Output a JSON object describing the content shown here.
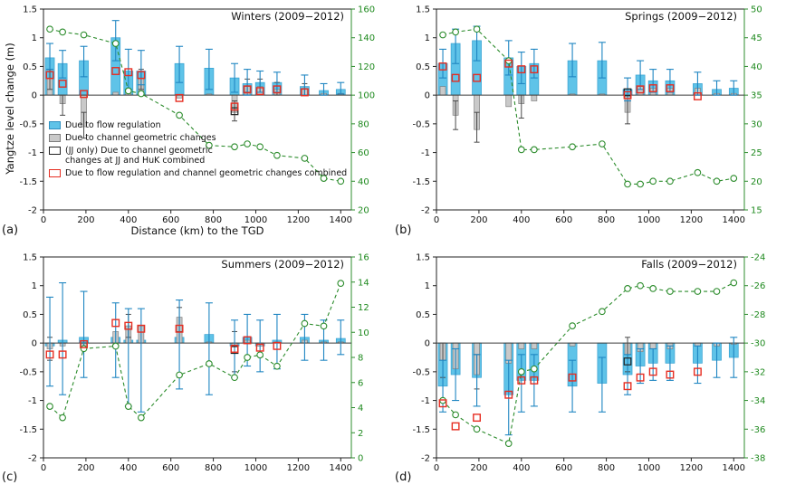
{
  "figure": {
    "ylabel": "Yangtze level change (m)",
    "xlabel": "Distance (km) to the TGD"
  },
  "colors": {
    "flow_bar": "#5fc3e8",
    "flow_bar_edge": "#35a0d0",
    "flow_err": "#1f86c2",
    "channel_bar": "#c9c9c9",
    "channel_bar_edge": "#808080",
    "channel_err": "#4a4a4a",
    "combined_marker": "#e62e22",
    "jj_marker": "#222222",
    "green_line": "#2c8c2c",
    "axis_color": "#222222",
    "zero_line": "#3a3a3a"
  },
  "legend": {
    "items": [
      {
        "swatch": "flow",
        "label_lines": [
          "Due to flow regulation"
        ]
      },
      {
        "swatch": "channel",
        "label_lines": [
          "Due to channel geometric changes"
        ]
      },
      {
        "swatch": "jj",
        "label_lines": [
          "(JJ only) Due to channel geometric",
          "changes at JJ and HuK combined"
        ]
      },
      {
        "swatch": "combined",
        "label_lines": [
          "Due to flow regulation and channel geometric changes combined"
        ]
      }
    ]
  },
  "chart_data": [
    {
      "panel": "a",
      "letter": "(a)",
      "title": "Winters (2009−2012)",
      "type": "bar",
      "xlim": [
        0,
        1450
      ],
      "ylim": [
        -2,
        1.5
      ],
      "xticks": [
        0,
        200,
        400,
        600,
        800,
        1000,
        1200,
        1400
      ],
      "yticks": [
        -2,
        -1.5,
        -1,
        -0.5,
        0,
        0.5,
        1,
        1.5
      ],
      "right_axis": {
        "min": 20,
        "max": 160,
        "step": 20
      },
      "x": [
        30,
        90,
        190,
        340,
        400,
        460,
        640,
        780,
        900,
        960,
        1020,
        1100,
        1230,
        1320,
        1400
      ],
      "series": {
        "flow_regulation": [
          0.65,
          0.55,
          0.6,
          1.0,
          0.42,
          0.42,
          0.55,
          0.47,
          0.3,
          0.2,
          0.22,
          0.22,
          0.15,
          0.08,
          0.1
        ],
        "flow_err": [
          [
            0.45,
            0.9
          ],
          [
            0.3,
            0.78
          ],
          [
            0.32,
            0.85
          ],
          [
            0.6,
            1.3
          ],
          [
            0.1,
            0.8
          ],
          [
            0.18,
            0.78
          ],
          [
            0.22,
            0.85
          ],
          [
            0.1,
            0.8
          ],
          [
            0.05,
            0.55
          ],
          [
            0.0,
            0.45
          ],
          [
            0.05,
            0.42
          ],
          [
            0.05,
            0.4
          ],
          [
            0.0,
            0.35
          ],
          [
            0.0,
            0.2
          ],
          [
            0.02,
            0.22
          ]
        ],
        "channel_geometric": [
          0.3,
          -0.15,
          -0.55,
          0.05,
          0.05,
          0.3,
          -0.05,
          0.02,
          -0.3,
          0.15,
          0.15,
          0.1,
          0.1,
          0.03,
          0.03
        ],
        "channel_err": [
          [
            0.1,
            0.45
          ],
          [
            -0.35,
            0.0
          ],
          [
            -0.75,
            -0.3
          ],
          null,
          null,
          [
            0.1,
            0.45
          ],
          null,
          null,
          [
            -0.45,
            -0.1
          ],
          [
            0.05,
            0.28
          ],
          [
            0.05,
            0.28
          ],
          [
            0.0,
            0.22
          ],
          [
            0.0,
            0.2
          ],
          null,
          null
        ],
        "combined_red_square": [
          0.35,
          0.2,
          0.02,
          0.42,
          0.4,
          0.35,
          -0.05,
          null,
          -0.2,
          0.1,
          0.07,
          0.1,
          0.05,
          null,
          null
        ],
        "jj_black_square": [
          null,
          null,
          null,
          null,
          null,
          null,
          null,
          null,
          -0.28,
          null,
          null,
          null,
          null,
          null,
          null
        ],
        "green_line_right_axis": [
          146,
          144,
          142,
          136,
          103,
          101,
          86,
          65,
          64,
          66,
          64,
          58,
          56,
          42,
          40
        ]
      }
    },
    {
      "panel": "b",
      "letter": "(b)",
      "title": "Springs (2009−2012)",
      "type": "bar",
      "xlim": [
        0,
        1450
      ],
      "ylim": [
        -2,
        1.5
      ],
      "xticks": [
        0,
        200,
        400,
        600,
        800,
        1000,
        1200,
        1400
      ],
      "yticks": [
        -2,
        -1.5,
        -1,
        -0.5,
        0,
        0.5,
        1,
        1.5
      ],
      "right_axis": {
        "min": 15,
        "max": 50,
        "step": 5
      },
      "x": [
        30,
        90,
        190,
        340,
        400,
        460,
        640,
        780,
        900,
        960,
        1020,
        1100,
        1230,
        1320,
        1400
      ],
      "series": {
        "flow_regulation": [
          0.55,
          0.9,
          0.95,
          0.65,
          0.5,
          0.55,
          0.6,
          0.6,
          0.1,
          0.35,
          0.25,
          0.25,
          0.2,
          0.1,
          0.12
        ],
        "flow_err": [
          [
            0.3,
            0.8
          ],
          [
            0.55,
            1.15
          ],
          [
            0.6,
            1.2
          ],
          [
            0.35,
            0.95
          ],
          [
            0.2,
            0.75
          ],
          [
            0.3,
            0.8
          ],
          [
            0.32,
            0.9
          ],
          [
            0.3,
            0.92
          ],
          [
            -0.1,
            0.3
          ],
          [
            0.1,
            0.6
          ],
          [
            0.05,
            0.45
          ],
          [
            0.05,
            0.45
          ],
          [
            0.0,
            0.4
          ],
          [
            0.0,
            0.25
          ],
          [
            0.0,
            0.25
          ]
        ],
        "channel_geometric": [
          0.15,
          -0.35,
          -0.6,
          -0.2,
          -0.15,
          -0.1,
          0.02,
          0.02,
          -0.3,
          0.15,
          0.12,
          0.12,
          0.12,
          0.03,
          0.03
        ],
        "channel_err": [
          null,
          [
            -0.6,
            -0.1
          ],
          [
            -0.82,
            -0.3
          ],
          null,
          [
            -0.4,
            0.0
          ],
          null,
          null,
          null,
          [
            -0.5,
            -0.1
          ],
          null,
          null,
          null,
          null,
          null,
          null
        ],
        "combined_red_square": [
          0.5,
          0.3,
          0.3,
          0.55,
          0.45,
          0.45,
          null,
          null,
          0.0,
          0.1,
          0.12,
          0.12,
          -0.02,
          null,
          null
        ],
        "jj_black_square": [
          null,
          null,
          null,
          null,
          null,
          null,
          null,
          null,
          0.05,
          null,
          null,
          null,
          null,
          null,
          null
        ],
        "green_line_right_axis": [
          45.5,
          46,
          46.5,
          41,
          25.5,
          25.5,
          26,
          26.5,
          19.5,
          19.5,
          20,
          20,
          21.5,
          20,
          20.5
        ]
      }
    },
    {
      "panel": "c",
      "letter": "(c)",
      "title": "Summers (2009−2012)",
      "type": "bar",
      "xlim": [
        0,
        1450
      ],
      "ylim": [
        -2,
        1.5
      ],
      "xticks": [
        0,
        200,
        400,
        600,
        800,
        1000,
        1200,
        1400
      ],
      "yticks": [
        -2,
        -1.5,
        -1,
        -0.5,
        0,
        0.5,
        1,
        1.5
      ],
      "right_axis": {
        "min": 0,
        "max": 16,
        "step": 2
      },
      "x": [
        30,
        90,
        190,
        340,
        400,
        460,
        640,
        780,
        900,
        960,
        1020,
        1100,
        1230,
        1320,
        1400
      ],
      "series": {
        "flow_regulation": [
          -0.05,
          0.05,
          0.1,
          0.1,
          0.05,
          0.05,
          0.1,
          0.15,
          -0.05,
          0.1,
          -0.05,
          0.05,
          0.1,
          0.05,
          0.08
        ],
        "flow_err": [
          [
            -0.75,
            0.8
          ],
          [
            -0.9,
            1.05
          ],
          [
            -0.6,
            0.9
          ],
          [
            -0.6,
            0.7
          ],
          [
            -1.1,
            0.6
          ],
          [
            -1.2,
            0.6
          ],
          [
            -0.8,
            0.75
          ],
          [
            -0.9,
            0.7
          ],
          [
            -0.6,
            0.4
          ],
          [
            -0.4,
            0.5
          ],
          [
            -0.5,
            0.4
          ],
          [
            -0.45,
            0.5
          ],
          [
            -0.3,
            0.5
          ],
          [
            -0.3,
            0.4
          ],
          [
            -0.2,
            0.4
          ]
        ],
        "channel_geometric": [
          -0.1,
          -0.05,
          -0.08,
          0.2,
          0.3,
          0.3,
          0.45,
          0.02,
          -0.05,
          0.05,
          -0.05,
          0.02,
          0.05,
          0.02,
          0.02
        ],
        "channel_err": [
          [
            -0.3,
            0.1
          ],
          null,
          null,
          null,
          [
            0.1,
            0.5
          ],
          null,
          [
            0.2,
            0.62
          ],
          null,
          [
            -0.5,
            0.2
          ],
          null,
          null,
          null,
          null,
          null,
          null
        ],
        "combined_red_square": [
          -0.2,
          -0.2,
          -0.02,
          0.35,
          0.3,
          0.25,
          0.25,
          null,
          -0.1,
          0.05,
          -0.08,
          -0.05,
          null,
          null,
          null
        ],
        "jj_black_square": [
          null,
          null,
          null,
          null,
          null,
          null,
          null,
          null,
          -0.12,
          null,
          null,
          null,
          null,
          null,
          null
        ],
        "green_line_right_axis": [
          4.1,
          3.2,
          8.7,
          8.9,
          4.1,
          3.2,
          6.6,
          7.5,
          6.4,
          8.0,
          8.2,
          7.3,
          10.7,
          10.5,
          13.9
        ]
      }
    },
    {
      "panel": "d",
      "letter": "(d)",
      "title": "Falls (2009−2012)",
      "type": "bar",
      "xlim": [
        0,
        1450
      ],
      "ylim": [
        -2,
        1.5
      ],
      "xticks": [
        0,
        200,
        400,
        600,
        800,
        1000,
        1200,
        1400
      ],
      "yticks": [
        -2,
        -1.5,
        -1,
        -0.5,
        0,
        0.5,
        1,
        1.5
      ],
      "right_axis": {
        "min": -38,
        "max": -24,
        "step": 2
      },
      "x": [
        30,
        90,
        190,
        340,
        400,
        460,
        640,
        780,
        900,
        960,
        1020,
        1100,
        1230,
        1320,
        1400
      ],
      "series": {
        "flow_regulation": [
          -0.75,
          -0.55,
          -0.6,
          -0.9,
          -0.65,
          -0.65,
          -0.75,
          -0.7,
          -0.55,
          -0.4,
          -0.35,
          -0.35,
          -0.35,
          -0.3,
          -0.25
        ],
        "flow_err": [
          [
            -1.2,
            -0.3
          ],
          [
            -1.0,
            -0.1
          ],
          [
            -1.1,
            -0.2
          ],
          [
            -1.6,
            -0.3
          ],
          [
            -1.2,
            -0.2
          ],
          [
            -1.1,
            -0.2
          ],
          [
            -1.2,
            -0.3
          ],
          [
            -1.2,
            -0.25
          ],
          [
            -0.9,
            -0.2
          ],
          [
            -0.7,
            -0.1
          ],
          [
            -0.65,
            -0.1
          ],
          [
            -0.65,
            -0.05
          ],
          [
            -0.7,
            -0.05
          ],
          [
            -0.6,
            0.0
          ],
          [
            -0.6,
            0.1
          ]
        ],
        "channel_geometric": [
          -0.3,
          -0.45,
          -0.55,
          -0.35,
          -0.1,
          -0.1,
          -0.05,
          0.0,
          -0.2,
          -0.15,
          -0.1,
          -0.1,
          -0.05,
          -0.05,
          -0.02
        ],
        "channel_err": [
          [
            -0.6,
            0.0
          ],
          null,
          [
            -0.8,
            -0.2
          ],
          null,
          null,
          null,
          null,
          null,
          [
            -0.5,
            0.1
          ],
          null,
          null,
          null,
          null,
          null,
          null
        ],
        "combined_red_square": [
          -1.05,
          -1.45,
          -1.3,
          -0.9,
          -0.65,
          -0.65,
          -0.6,
          null,
          -0.75,
          -0.6,
          -0.5,
          -0.55,
          -0.5,
          null,
          null
        ],
        "jj_black_square": [
          null,
          null,
          null,
          null,
          null,
          null,
          null,
          null,
          -0.32,
          null,
          null,
          null,
          null,
          null,
          null
        ],
        "green_line_right_axis": [
          -34,
          -35,
          -36,
          -37,
          -32,
          -31.8,
          -28.8,
          -27.8,
          -26.2,
          -26,
          -26.2,
          -26.4,
          -26.4,
          -26.4,
          -25.8
        ]
      }
    }
  ]
}
